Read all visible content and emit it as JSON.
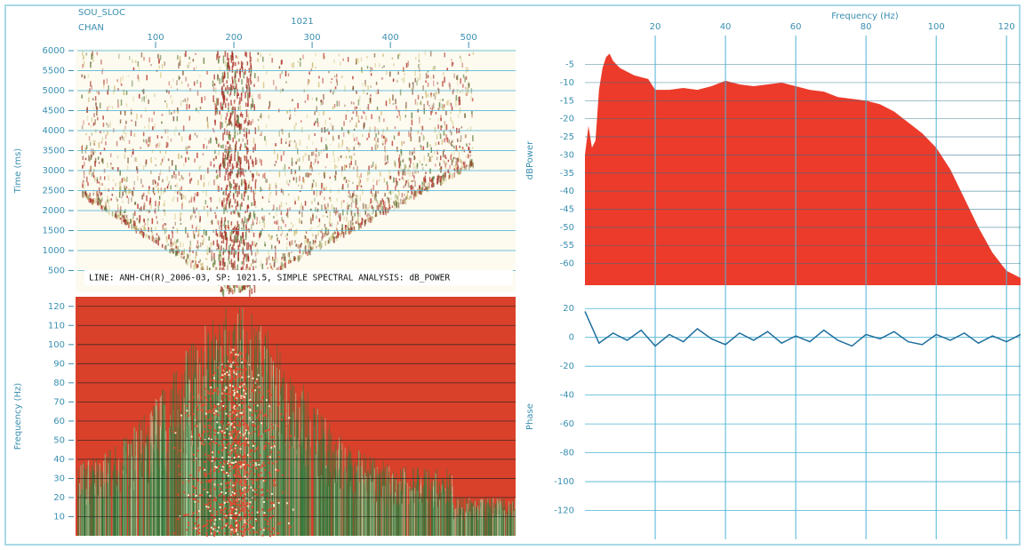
{
  "chart_data": [
    {
      "type": "heatmap",
      "header_label": "SOU_SLOC",
      "header_value": "1021",
      "xlabel": "CHAN",
      "ylabel": "Time (ms)",
      "xlim": [
        0,
        560
      ],
      "xticks": [
        100,
        200,
        300,
        400,
        500
      ],
      "ylim": [
        0,
        6000
      ],
      "yticks": [
        500,
        1000,
        1500,
        2000,
        2500,
        3000,
        3500,
        4000,
        4500,
        5000,
        5500,
        6000
      ],
      "annotation": "LINE: ANH-CH(R)_2006-03, SP: 1021.5, SIMPLE SPECTRAL ANALYSIS: dB_POWER"
    },
    {
      "type": "heatmap",
      "ylabel": "Frequency (Hz)",
      "xlim": [
        0,
        560
      ],
      "ylim": [
        0,
        125
      ],
      "yticks": [
        10,
        20,
        30,
        40,
        50,
        60,
        70,
        80,
        90,
        100,
        110,
        120
      ]
    },
    {
      "type": "area",
      "xlabel": "Frequency (Hz)",
      "ylabel": "dBPower",
      "color": "#ec3b2b",
      "xlim": [
        0,
        124
      ],
      "xticks": [
        20,
        40,
        60,
        80,
        100,
        120
      ],
      "ylim": [
        -66,
        3
      ],
      "yticks": [
        -5,
        -10,
        -15,
        -20,
        -25,
        -30,
        -35,
        -40,
        -45,
        -50,
        -55,
        -60
      ],
      "x": [
        0,
        1,
        2,
        3,
        4,
        5,
        6,
        7,
        8,
        9,
        10,
        12,
        14,
        16,
        18,
        20,
        24,
        28,
        32,
        36,
        40,
        44,
        48,
        52,
        56,
        60,
        64,
        68,
        72,
        76,
        80,
        84,
        88,
        92,
        96,
        100,
        104,
        108,
        112,
        116,
        120,
        124
      ],
      "values": [
        -30,
        -22,
        -28,
        -26,
        -12,
        -6,
        -3,
        -2,
        -4,
        -5,
        -6,
        -7,
        -8,
        -8.5,
        -9,
        -12,
        -12,
        -11.5,
        -12,
        -11,
        -9.5,
        -10.5,
        -11,
        -10.5,
        -10,
        -11,
        -12,
        -12.5,
        -14,
        -14.5,
        -15,
        -16,
        -18,
        -21,
        -24,
        -28,
        -34,
        -42,
        -50,
        -57,
        -62,
        -64
      ]
    },
    {
      "type": "line",
      "ylabel": "Phase",
      "color": "#1f6f9e",
      "xlim": [
        0,
        124
      ],
      "ylim": [
        -140,
        30
      ],
      "yticks": [
        20,
        0,
        -20,
        -40,
        -60,
        -80,
        -100,
        -120
      ],
      "x": [
        0,
        4,
        8,
        12,
        16,
        20,
        24,
        28,
        32,
        36,
        40,
        44,
        48,
        52,
        56,
        60,
        64,
        68,
        72,
        76,
        80,
        84,
        88,
        92,
        96,
        100,
        104,
        108,
        112,
        116,
        120,
        124
      ],
      "values": [
        18,
        -4,
        3,
        -2,
        5,
        -6,
        2,
        -3,
        6,
        -1,
        -5,
        3,
        -2,
        4,
        -4,
        1,
        -3,
        5,
        -2,
        -6,
        2,
        -1,
        4,
        -3,
        -5,
        2,
        -2,
        3,
        -4,
        1,
        -3,
        2
      ]
    }
  ]
}
